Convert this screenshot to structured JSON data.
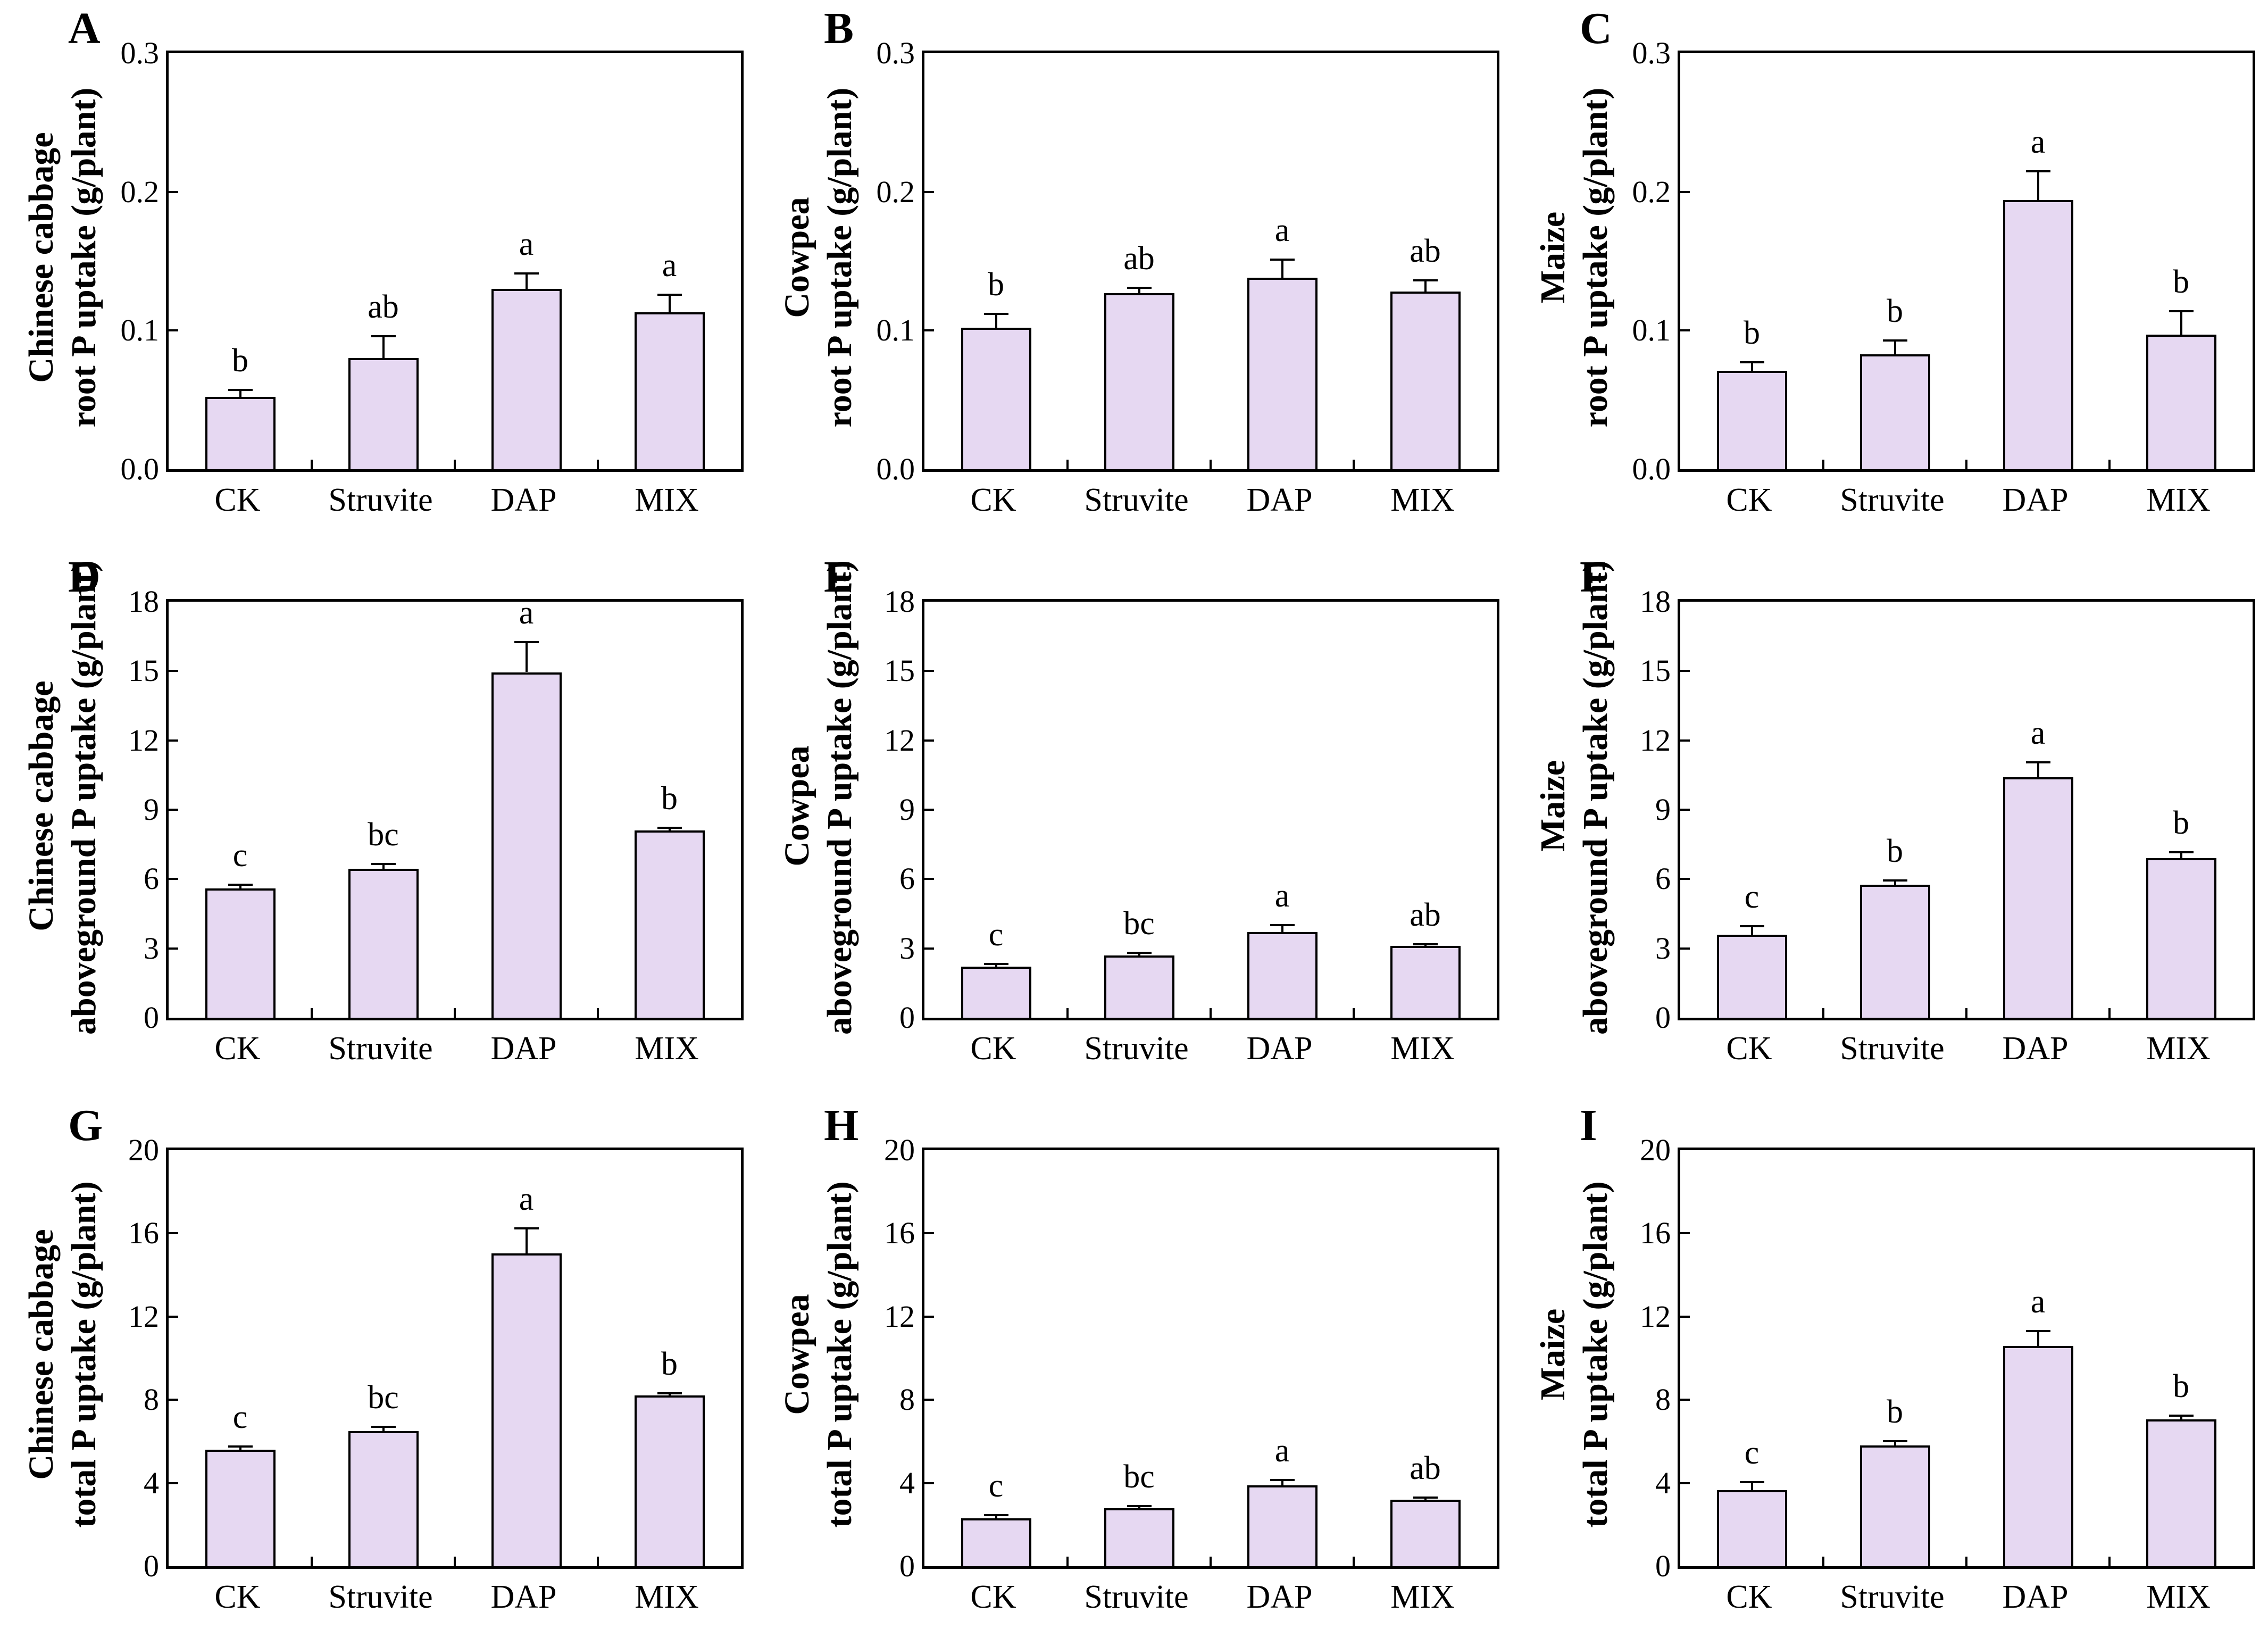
{
  "figure": {
    "description_colors": {
      "bar_fill": "#E6D8F2",
      "bar_border": "#000000",
      "axis_color": "#000000",
      "background": "#ffffff"
    }
  },
  "chart_data": [
    {
      "type": "bar",
      "panel_letter": "A",
      "ylabel_line1": "Chinese cabbage",
      "ylabel_line2": "root P uptake (g/plant)",
      "categories": [
        "CK",
        "Struvite",
        "DAP",
        "MIX"
      ],
      "values": [
        0.052,
        0.08,
        0.13,
        0.113
      ],
      "errors": [
        0.005,
        0.016,
        0.011,
        0.013
      ],
      "sig_letters": [
        "b",
        "ab",
        "a",
        "a"
      ],
      "ylim": [
        0,
        0.3
      ],
      "ytick_values": [
        0,
        0.1,
        0.2,
        0.3
      ],
      "ytick_labels": [
        "0.0",
        "0.1",
        "0.2",
        "0.3"
      ],
      "grid": "off",
      "legend": "none"
    },
    {
      "type": "bar",
      "panel_letter": "B",
      "ylabel_line1": "Cowpea",
      "ylabel_line2": "root P uptake (g/plant)",
      "categories": [
        "CK",
        "Struvite",
        "DAP",
        "MIX"
      ],
      "values": [
        0.102,
        0.127,
        0.138,
        0.128
      ],
      "errors": [
        0.01,
        0.004,
        0.013,
        0.008
      ],
      "sig_letters": [
        "b",
        "ab",
        "a",
        "ab"
      ],
      "ylim": [
        0,
        0.3
      ],
      "ytick_values": [
        0,
        0.1,
        0.2,
        0.3
      ],
      "ytick_labels": [
        "0.0",
        "0.1",
        "0.2",
        "0.3"
      ],
      "grid": "off",
      "legend": "none"
    },
    {
      "type": "bar",
      "panel_letter": "C",
      "ylabel_line1": "Maize",
      "ylabel_line2": "root P uptake (g/plant)",
      "categories": [
        "CK",
        "Struvite",
        "DAP",
        "MIX"
      ],
      "values": [
        0.071,
        0.083,
        0.194,
        0.097
      ],
      "errors": [
        0.006,
        0.01,
        0.021,
        0.017
      ],
      "sig_letters": [
        "b",
        "b",
        "a",
        "b"
      ],
      "ylim": [
        0,
        0.3
      ],
      "ytick_values": [
        0,
        0.1,
        0.2,
        0.3
      ],
      "ytick_labels": [
        "0.0",
        "0.1",
        "0.2",
        "0.3"
      ],
      "grid": "off",
      "legend": "none"
    },
    {
      "type": "bar",
      "panel_letter": "D",
      "ylabel_line1": "Chinese cabbage",
      "ylabel_line2": "aboveground P uptake (g/plant)",
      "categories": [
        "CK",
        "Struvite",
        "DAP",
        "MIX"
      ],
      "values": [
        5.6,
        6.45,
        14.95,
        8.1
      ],
      "errors": [
        0.15,
        0.2,
        1.3,
        0.12
      ],
      "sig_letters": [
        "c",
        "bc",
        "a",
        "b"
      ],
      "ylim": [
        0,
        18
      ],
      "ytick_values": [
        0,
        3,
        6,
        9,
        12,
        15,
        18
      ],
      "ytick_labels": [
        "0",
        "3",
        "6",
        "9",
        "12",
        "15",
        "18"
      ],
      "grid": "off",
      "legend": "none"
    },
    {
      "type": "bar",
      "panel_letter": "E",
      "ylabel_line1": "Cowpea",
      "ylabel_line2": "aboveground P uptake (g/plant)",
      "categories": [
        "CK",
        "Struvite",
        "DAP",
        "MIX"
      ],
      "values": [
        2.2,
        2.7,
        3.7,
        3.1
      ],
      "errors": [
        0.12,
        0.1,
        0.3,
        0.08
      ],
      "sig_letters": [
        "c",
        "bc",
        "a",
        "ab"
      ],
      "ylim": [
        0,
        18
      ],
      "ytick_values": [
        0,
        3,
        6,
        9,
        12,
        15,
        18
      ],
      "ytick_labels": [
        "0",
        "3",
        "6",
        "9",
        "12",
        "15",
        "18"
      ],
      "grid": "off",
      "legend": "none"
    },
    {
      "type": "bar",
      "panel_letter": "F",
      "ylabel_line1": "Maize",
      "ylabel_line2": "aboveground P uptake (g/plant)",
      "categories": [
        "CK",
        "Struvite",
        "DAP",
        "MIX"
      ],
      "values": [
        3.6,
        5.75,
        10.4,
        6.9
      ],
      "errors": [
        0.35,
        0.2,
        0.65,
        0.25
      ],
      "sig_letters": [
        "c",
        "b",
        "a",
        "b"
      ],
      "ylim": [
        0,
        18
      ],
      "ytick_values": [
        0,
        3,
        6,
        9,
        12,
        15,
        18
      ],
      "ytick_labels": [
        "0",
        "3",
        "6",
        "9",
        "12",
        "15",
        "18"
      ],
      "grid": "off",
      "legend": "none"
    },
    {
      "type": "bar",
      "panel_letter": "G",
      "ylabel_line1": "Chinese cabbage",
      "ylabel_line2": "total P uptake (g/plant)",
      "categories": [
        "CK",
        "Struvite",
        "DAP",
        "MIX"
      ],
      "values": [
        5.6,
        6.5,
        15.05,
        8.2
      ],
      "errors": [
        0.15,
        0.2,
        1.2,
        0.1
      ],
      "sig_letters": [
        "c",
        "bc",
        "a",
        "b"
      ],
      "ylim": [
        0,
        20
      ],
      "ytick_values": [
        0,
        4,
        8,
        12,
        16,
        20
      ],
      "ytick_labels": [
        "0",
        "4",
        "8",
        "12",
        "16",
        "20"
      ],
      "grid": "off",
      "legend": "none"
    },
    {
      "type": "bar",
      "panel_letter": "H",
      "ylabel_line1": "Cowpea",
      "ylabel_line2": "total P uptake (g/plant)",
      "categories": [
        "CK",
        "Struvite",
        "DAP",
        "MIX"
      ],
      "values": [
        2.3,
        2.8,
        3.9,
        3.2
      ],
      "errors": [
        0.15,
        0.1,
        0.25,
        0.1
      ],
      "sig_letters": [
        "c",
        "bc",
        "a",
        "ab"
      ],
      "ylim": [
        0,
        20
      ],
      "ytick_values": [
        0,
        4,
        8,
        12,
        16,
        20
      ],
      "ytick_labels": [
        "0",
        "4",
        "8",
        "12",
        "16",
        "20"
      ],
      "grid": "off",
      "legend": "none"
    },
    {
      "type": "bar",
      "panel_letter": "I",
      "ylabel_line1": "Maize",
      "ylabel_line2": "total P uptake (g/plant)",
      "categories": [
        "CK",
        "Struvite",
        "DAP",
        "MIX"
      ],
      "values": [
        3.65,
        5.8,
        10.6,
        7.05
      ],
      "errors": [
        0.4,
        0.2,
        0.7,
        0.2
      ],
      "sig_letters": [
        "c",
        "b",
        "a",
        "b"
      ],
      "ylim": [
        0,
        20
      ],
      "ytick_values": [
        0,
        4,
        8,
        12,
        16,
        20
      ],
      "ytick_labels": [
        "0",
        "4",
        "8",
        "12",
        "16",
        "20"
      ],
      "grid": "off",
      "legend": "none"
    }
  ]
}
